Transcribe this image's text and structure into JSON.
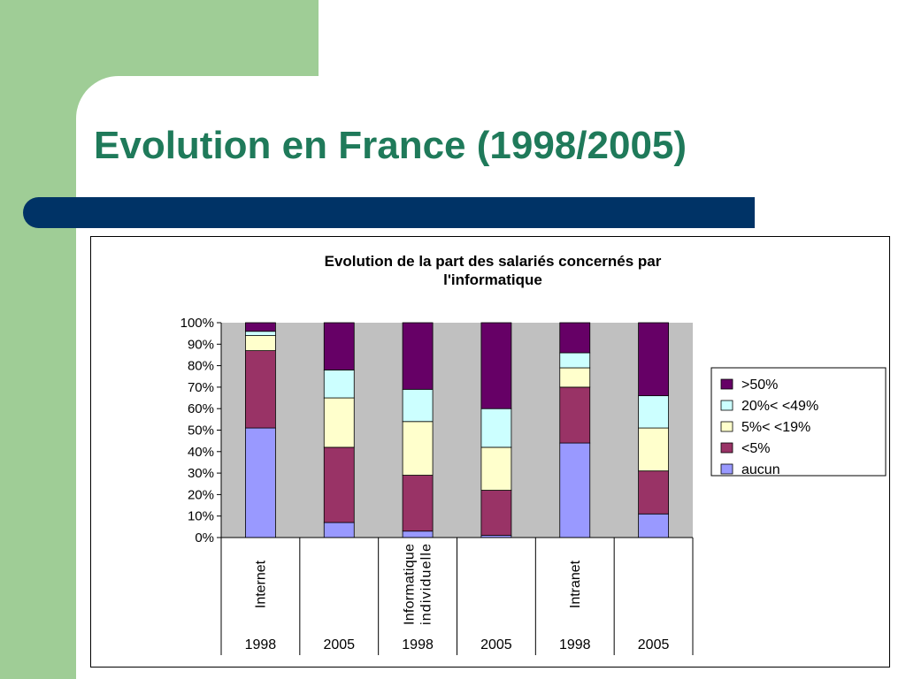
{
  "slide": {
    "title": "Evolution en France (1998/2005)",
    "colors": {
      "background_green": "#9fcd96",
      "title_color": "#1f7a5a",
      "bar_blue": "#003366"
    }
  },
  "chart_data": {
    "type": "bar",
    "stacked": true,
    "title_lines": [
      "Evolution de la part des salariés concernés par",
      "l'informatique"
    ],
    "yticks": [
      "0%",
      "10%",
      "20%",
      "30%",
      "40%",
      "50%",
      "60%",
      "70%",
      "80%",
      "90%",
      "100%"
    ],
    "ylim": [
      0,
      100
    ],
    "grid": false,
    "plot_background": "#c0c0c0",
    "legend_position": "right",
    "groups": [
      {
        "label_lines": [
          "Internet"
        ],
        "years": [
          "1998",
          "2005"
        ]
      },
      {
        "label_lines": [
          "Informatique",
          "individuelle"
        ],
        "years": [
          "1998",
          "2005"
        ]
      },
      {
        "label_lines": [
          "Intranet"
        ],
        "years": [
          "1998",
          "2005"
        ]
      }
    ],
    "categories": [
      "Internet 1998",
      "Internet 2005",
      "Informatique individuelle 1998",
      "Informatique individuelle 2005",
      "Intranet 1998",
      "Intranet 2005"
    ],
    "series": [
      {
        "name": "aucun",
        "color": "#9999ff",
        "values": [
          51,
          7,
          3,
          1,
          44,
          11
        ]
      },
      {
        "name": "<5%",
        "color": "#993366",
        "values": [
          36,
          35,
          26,
          21,
          26,
          20
        ]
      },
      {
        "name": "5%< <19%",
        "color": "#ffffcc",
        "values": [
          7,
          23,
          25,
          20,
          9,
          20
        ]
      },
      {
        "name": "20%< <49%",
        "color": "#ccffff",
        "values": [
          2,
          13,
          15,
          18,
          7,
          15
        ]
      },
      {
        "name": ">50%",
        "color": "#660066",
        "values": [
          4,
          22,
          31,
          40,
          14,
          34
        ]
      }
    ]
  }
}
